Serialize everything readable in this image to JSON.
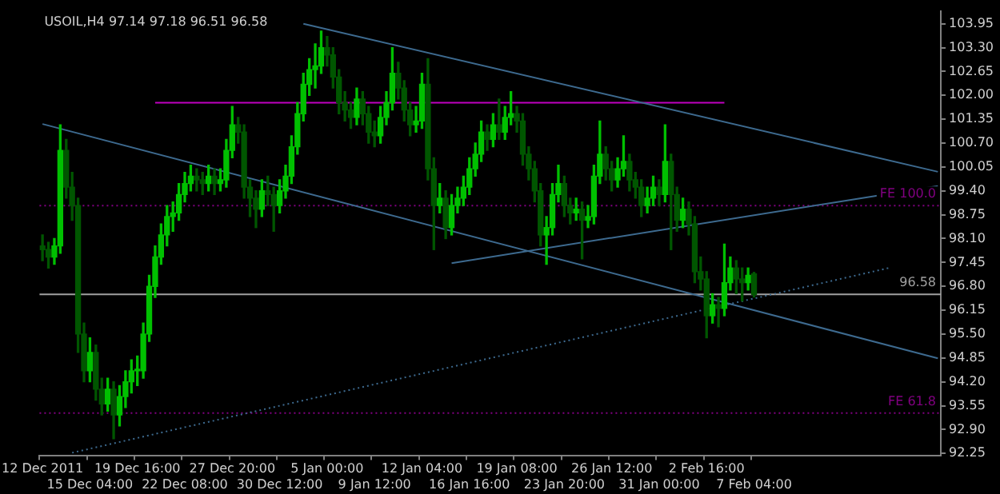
{
  "chart_data": {
    "type": "candlestick",
    "title": "USOIL,H4 97.14 97.18 96.51 96.58",
    "colors": [
      "#005600",
      "#005600",
      "#00c000",
      "#00c000",
      "#005600",
      "#005600",
      "#005600",
      "#005600",
      "#00c000",
      "#005600",
      "#005600",
      "#00c000",
      "#005600",
      "#00c000",
      "#00c000",
      "#00c000",
      "#00c000",
      "#00c000",
      "#00c000",
      "#00c000",
      "#00c000",
      "#00c000",
      "#00c000",
      "#00c000",
      "#00c000",
      "#00c000",
      "#005600",
      "#005600",
      "#00c000",
      "#005600",
      "#00c000",
      "#00c000",
      "#00c000",
      "#005600",
      "#005600",
      "#005600",
      "#005600",
      "#00c000",
      "#005600",
      "#005600",
      "#00c000",
      "#00c000",
      "#00c000",
      "#00c000",
      "#00c000",
      "#00c000",
      "#00c000",
      "#00c000",
      "#005600",
      "#005600",
      "#005600",
      "#005600",
      "#005600",
      "#00c000",
      "#005600",
      "#005600",
      "#005600",
      "#00c000",
      "#00c000",
      "#00c000",
      "#005600",
      "#005600",
      "#005600",
      "#00c000",
      "#00c000",
      "#005600",
      "#005600",
      "#00c000",
      "#005600",
      "#00c000",
      "#00c000",
      "#00c000",
      "#00c000",
      "#00c000",
      "#00c000",
      "#005600",
      "#00c000",
      "#005600",
      "#00c000",
      "#00c000",
      "#005600",
      "#005600",
      "#005600",
      "#005600",
      "#005600",
      "#00c000",
      "#00c000",
      "#00c000",
      "#005600",
      "#005600",
      "#00c000",
      "#005600",
      "#00c000",
      "#00c000",
      "#00c000",
      "#005600",
      "#005600",
      "#00c000",
      "#00c000",
      "#005600",
      "#005600",
      "#005600",
      "#00c000",
      "#00c000",
      "#005600",
      "#00c000",
      "#005600",
      "#005600",
      "#00c000",
      "#005600",
      "#005600",
      "#005600",
      "#005600",
      "#00c000",
      "#005600",
      "#00c000",
      "#00c000",
      "#005600",
      "#005600",
      "#00c000",
      "#005600",
      null,
      null,
      null,
      null,
      null,
      null,
      null,
      null,
      null,
      null,
      null,
      null,
      null,
      null,
      null,
      null,
      null,
      null,
      null,
      null,
      null,
      null,
      null,
      null,
      null,
      null,
      null,
      null,
      null,
      null,
      null
    ],
    "marker": "none",
    "grid": false,
    "legend": false,
    "categories": [
      "12 Dec 2011",
      null,
      null,
      null,
      null,
      null,
      null,
      null,
      "15 Dec 04:00",
      null,
      null,
      null,
      null,
      null,
      null,
      null,
      "19 Dec 16:00",
      null,
      null,
      null,
      null,
      null,
      null,
      null,
      "22 Dec 08:00",
      null,
      null,
      null,
      null,
      null,
      null,
      null,
      "27 Dec 20:00",
      null,
      null,
      null,
      null,
      null,
      null,
      null,
      "30 Dec 12:00",
      null,
      null,
      null,
      null,
      null,
      null,
      null,
      "5 Jan 00:00",
      null,
      null,
      null,
      null,
      null,
      null,
      null,
      "9 Jan 12:00",
      null,
      null,
      null,
      null,
      null,
      null,
      null,
      "12 Jan 04:00",
      null,
      null,
      null,
      null,
      null,
      null,
      null,
      "16 Jan 16:00",
      null,
      null,
      null,
      null,
      null,
      null,
      null,
      "19 Jan 08:00",
      null,
      null,
      null,
      null,
      null,
      null,
      null,
      "23 Jan 20:00",
      null,
      null,
      null,
      null,
      null,
      null,
      null,
      "26 Jan 12:00",
      null,
      null,
      null,
      null,
      null,
      null,
      null,
      "31 Jan 00:00",
      null,
      null,
      null,
      null,
      null,
      null,
      null,
      "2 Feb 16:00",
      null,
      null,
      null,
      null,
      null,
      null,
      null,
      "7 Feb 04:00",
      null,
      null,
      null,
      null,
      null,
      null,
      null,
      null,
      null,
      null,
      null,
      null,
      null,
      null,
      null,
      null,
      null,
      null,
      null,
      null,
      null,
      null,
      null,
      null,
      null,
      null,
      null,
      null,
      null,
      null,
      null
    ],
    "ohlc": [
      [
        97.9,
        98.2,
        97.5,
        97.8
      ],
      [
        97.8,
        98.0,
        97.3,
        97.6
      ],
      [
        97.6,
        98.1,
        97.4,
        97.9
      ],
      [
        97.9,
        101.2,
        97.7,
        100.5
      ],
      [
        100.5,
        100.8,
        99.2,
        99.5
      ],
      [
        99.5,
        99.9,
        98.6,
        99.0
      ],
      [
        99.0,
        99.2,
        95.0,
        95.5
      ],
      [
        95.5,
        95.8,
        94.2,
        94.5
      ],
      [
        94.5,
        95.4,
        94.2,
        95.0
      ],
      [
        95.0,
        95.2,
        93.7,
        94.0
      ],
      [
        94.0,
        94.3,
        93.3,
        93.6
      ],
      [
        93.6,
        94.3,
        93.4,
        94.0
      ],
      [
        94.0,
        94.2,
        92.65,
        93.3
      ],
      [
        93.3,
        94.1,
        93.0,
        93.8
      ],
      [
        93.8,
        94.5,
        93.5,
        94.2
      ],
      [
        94.2,
        94.8,
        93.9,
        94.5
      ],
      [
        94.5,
        94.9,
        94.1,
        94.5
      ],
      [
        94.5,
        95.8,
        94.3,
        95.5
      ],
      [
        95.5,
        97.1,
        95.3,
        96.8
      ],
      [
        96.8,
        97.9,
        96.5,
        97.6
      ],
      [
        97.6,
        98.5,
        97.4,
        98.2
      ],
      [
        98.2,
        99.0,
        97.9,
        98.7
      ],
      [
        98.7,
        99.1,
        98.3,
        98.8
      ],
      [
        98.8,
        99.6,
        98.6,
        99.3
      ],
      [
        99.3,
        99.9,
        99.1,
        99.6
      ],
      [
        99.6,
        100.1,
        99.4,
        99.8
      ],
      [
        99.8,
        100.0,
        99.4,
        99.7
      ],
      [
        99.7,
        99.9,
        99.3,
        99.6
      ],
      [
        99.6,
        100.1,
        99.4,
        99.8
      ],
      [
        99.8,
        100.0,
        99.3,
        99.6
      ],
      [
        99.6,
        100.0,
        99.4,
        99.7
      ],
      [
        99.7,
        100.8,
        99.5,
        100.5
      ],
      [
        100.5,
        101.7,
        100.3,
        101.2
      ],
      [
        101.2,
        101.4,
        100.7,
        101.0
      ],
      [
        101.0,
        101.2,
        99.2,
        99.5
      ],
      [
        99.5,
        99.7,
        98.7,
        99.2
      ],
      [
        99.2,
        99.4,
        98.4,
        98.9
      ],
      [
        98.9,
        99.7,
        98.7,
        99.4
      ],
      [
        99.4,
        99.8,
        99.0,
        99.3
      ],
      [
        99.3,
        99.5,
        98.3,
        99.0
      ],
      [
        99.0,
        99.7,
        98.8,
        99.4
      ],
      [
        99.4,
        100.1,
        99.2,
        99.8
      ],
      [
        99.8,
        100.9,
        99.6,
        100.6
      ],
      [
        100.6,
        101.8,
        100.4,
        101.5
      ],
      [
        101.5,
        102.6,
        101.3,
        102.3
      ],
      [
        102.3,
        103.0,
        102.0,
        102.7
      ],
      [
        102.7,
        103.4,
        102.2,
        102.8
      ],
      [
        102.8,
        103.75,
        102.6,
        103.3
      ],
      [
        103.3,
        103.6,
        102.8,
        103.1
      ],
      [
        103.1,
        103.3,
        102.2,
        102.5
      ],
      [
        102.5,
        102.7,
        101.5,
        101.8
      ],
      [
        101.8,
        102.1,
        101.3,
        101.6
      ],
      [
        101.6,
        101.8,
        101.1,
        101.4
      ],
      [
        101.4,
        102.2,
        101.2,
        101.9
      ],
      [
        101.9,
        102.1,
        101.2,
        101.5
      ],
      [
        101.5,
        101.7,
        100.7,
        101.0
      ],
      [
        101.0,
        101.3,
        100.6,
        100.9
      ],
      [
        100.9,
        101.7,
        100.7,
        101.4
      ],
      [
        101.4,
        102.1,
        101.2,
        101.8
      ],
      [
        101.8,
        103.3,
        101.6,
        102.6
      ],
      [
        102.6,
        102.9,
        101.9,
        102.2
      ],
      [
        102.2,
        102.4,
        101.3,
        101.6
      ],
      [
        101.6,
        101.8,
        100.9,
        101.2
      ],
      [
        101.2,
        101.7,
        101.0,
        101.3
      ],
      [
        101.3,
        102.6,
        101.1,
        102.3
      ],
      [
        102.3,
        103.0,
        99.7,
        100.0
      ],
      [
        100.0,
        100.3,
        97.8,
        99.0
      ],
      [
        99.0,
        99.6,
        98.8,
        99.2
      ],
      [
        99.2,
        99.4,
        98.1,
        98.4
      ],
      [
        98.4,
        99.3,
        98.2,
        99.0
      ],
      [
        99.0,
        99.5,
        98.8,
        99.2
      ],
      [
        99.2,
        99.8,
        99.0,
        99.5
      ],
      [
        99.5,
        100.3,
        99.3,
        100.0
      ],
      [
        100.0,
        100.7,
        99.8,
        100.4
      ],
      [
        100.4,
        101.3,
        100.2,
        101.0
      ],
      [
        101.0,
        101.2,
        100.5,
        100.8
      ],
      [
        100.8,
        101.5,
        100.6,
        101.2
      ],
      [
        101.2,
        101.9,
        100.8,
        101.0
      ],
      [
        101.0,
        101.7,
        100.8,
        101.4
      ],
      [
        101.4,
        102.1,
        101.2,
        101.5
      ],
      [
        101.5,
        101.7,
        101.0,
        101.3
      ],
      [
        101.3,
        101.5,
        100.1,
        100.4
      ],
      [
        100.4,
        100.6,
        99.7,
        100.0
      ],
      [
        100.0,
        100.2,
        99.1,
        99.4
      ],
      [
        99.4,
        99.6,
        97.9,
        98.2
      ],
      [
        98.2,
        98.7,
        97.4,
        98.4
      ],
      [
        98.4,
        99.6,
        98.2,
        99.3
      ],
      [
        99.3,
        100.1,
        99.1,
        99.6
      ],
      [
        99.6,
        99.8,
        98.7,
        99.0
      ],
      [
        99.0,
        99.2,
        98.5,
        98.8
      ],
      [
        98.8,
        99.2,
        98.6,
        98.9
      ],
      [
        98.9,
        99.1,
        97.55,
        98.6
      ],
      [
        98.6,
        99.0,
        98.4,
        98.7
      ],
      [
        98.7,
        100.1,
        98.5,
        99.8
      ],
      [
        99.8,
        101.3,
        99.6,
        100.4
      ],
      [
        100.4,
        100.6,
        99.7,
        100.0
      ],
      [
        100.0,
        100.2,
        99.4,
        99.7
      ],
      [
        99.7,
        100.3,
        99.5,
        100.0
      ],
      [
        100.0,
        100.9,
        99.8,
        100.2
      ],
      [
        100.2,
        100.4,
        99.4,
        99.7
      ],
      [
        99.7,
        99.9,
        99.2,
        99.5
      ],
      [
        99.5,
        99.7,
        98.7,
        99.0
      ],
      [
        99.0,
        99.5,
        98.8,
        99.2
      ],
      [
        99.2,
        99.8,
        99.0,
        99.5
      ],
      [
        99.5,
        99.7,
        99.0,
        99.3
      ],
      [
        99.3,
        101.2,
        99.1,
        100.2
      ],
      [
        100.2,
        100.4,
        97.8,
        99.3
      ],
      [
        99.3,
        99.5,
        98.3,
        98.6
      ],
      [
        98.6,
        99.2,
        98.4,
        98.9
      ],
      [
        98.9,
        99.1,
        98.2,
        98.5
      ],
      [
        98.5,
        98.7,
        96.9,
        97.2
      ],
      [
        97.2,
        97.6,
        96.7,
        97.0
      ],
      [
        97.0,
        97.2,
        95.4,
        96.0
      ],
      [
        96.0,
        96.6,
        95.8,
        96.3
      ],
      [
        96.3,
        96.5,
        95.7,
        96.2
      ],
      [
        96.2,
        97.95,
        96.0,
        96.9
      ],
      [
        96.9,
        97.6,
        96.7,
        97.3
      ],
      [
        97.3,
        97.5,
        96.6,
        97.0
      ],
      [
        97.0,
        97.3,
        96.4,
        96.9
      ],
      [
        96.9,
        97.3,
        96.7,
        97.1
      ],
      [
        97.14,
        97.18,
        96.51,
        96.58
      ],
      null,
      null,
      null,
      null,
      null,
      null,
      null,
      null,
      null,
      null,
      null,
      null,
      null,
      null,
      null,
      null,
      null,
      null,
      null,
      null,
      null,
      null,
      null,
      null,
      null,
      null,
      null,
      null,
      null,
      null,
      null
    ],
    "series": [
      {
        "type": "line",
        "color": "#3d6a8f",
        "line_style": "solid",
        "values": [
          null,
          null,
          null,
          null,
          null,
          null,
          null,
          null,
          null,
          null,
          null,
          null,
          null,
          null,
          null,
          null,
          null,
          null,
          null,
          null,
          null,
          null,
          null,
          null,
          null,
          null,
          null,
          null,
          null,
          null,
          null,
          null,
          null,
          null,
          null,
          null,
          null,
          null,
          null,
          null,
          null,
          null,
          null,
          null,
          103.95,
          null,
          null,
          null,
          null,
          null,
          null,
          null,
          null,
          null,
          null,
          null,
          null,
          null,
          null,
          null,
          null,
          null,
          null,
          null,
          null,
          null,
          null,
          null,
          null,
          null,
          null,
          null,
          null,
          null,
          null,
          null,
          null,
          null,
          null,
          null,
          null,
          null,
          null,
          null,
          null,
          null,
          null,
          null,
          null,
          null,
          null,
          null,
          null,
          null,
          null,
          null,
          null,
          null,
          null,
          null,
          null,
          null,
          null,
          null,
          null,
          null,
          null,
          null,
          null,
          null,
          null,
          null,
          null,
          null,
          null,
          null,
          null,
          null,
          null,
          null,
          null,
          null,
          null,
          null,
          null,
          null,
          null,
          null,
          null,
          null,
          null,
          null,
          null,
          null,
          null,
          null,
          null,
          null,
          null,
          null,
          null,
          null,
          null,
          null,
          null,
          null,
          null,
          null,
          null,
          null,
          null,
          99.92
        ]
      },
      {
        "type": "line",
        "color": "#3d6a8f",
        "line_style": "solid",
        "values": [
          101.22,
          null,
          null,
          null,
          null,
          null,
          null,
          null,
          null,
          null,
          null,
          null,
          null,
          null,
          null,
          null,
          null,
          null,
          null,
          null,
          null,
          null,
          null,
          null,
          null,
          null,
          null,
          null,
          null,
          null,
          null,
          null,
          null,
          null,
          null,
          null,
          null,
          null,
          null,
          null,
          null,
          null,
          null,
          null,
          null,
          null,
          null,
          null,
          null,
          null,
          null,
          null,
          null,
          null,
          null,
          null,
          null,
          null,
          null,
          null,
          null,
          null,
          null,
          null,
          null,
          null,
          null,
          null,
          null,
          null,
          null,
          null,
          null,
          null,
          null,
          null,
          null,
          null,
          null,
          null,
          null,
          null,
          null,
          null,
          null,
          null,
          null,
          null,
          null,
          null,
          null,
          null,
          null,
          null,
          null,
          null,
          null,
          null,
          null,
          null,
          null,
          null,
          null,
          null,
          null,
          null,
          null,
          null,
          null,
          null,
          null,
          null,
          null,
          null,
          null,
          null,
          null,
          null,
          null,
          null,
          null,
          null,
          null,
          null,
          null,
          null,
          null,
          null,
          null,
          null,
          null,
          null,
          null,
          null,
          null,
          null,
          null,
          null,
          null,
          null,
          null,
          null,
          null,
          null,
          null,
          null,
          null,
          null,
          null,
          null,
          null,
          94.84
        ]
      },
      {
        "type": "line",
        "color": "#3d6a8f",
        "line_style": "solid",
        "values": [
          null,
          null,
          null,
          null,
          null,
          null,
          null,
          null,
          null,
          null,
          null,
          null,
          null,
          null,
          null,
          null,
          null,
          null,
          null,
          null,
          null,
          null,
          null,
          null,
          null,
          null,
          null,
          null,
          null,
          null,
          null,
          null,
          null,
          null,
          null,
          null,
          null,
          null,
          null,
          null,
          null,
          null,
          null,
          null,
          null,
          null,
          null,
          null,
          null,
          null,
          null,
          null,
          null,
          null,
          null,
          null,
          null,
          null,
          null,
          null,
          null,
          null,
          null,
          null,
          null,
          null,
          null,
          null,
          null,
          97.43,
          null,
          null,
          null,
          null,
          null,
          null,
          null,
          null,
          null,
          null,
          null,
          null,
          null,
          null,
          null,
          null,
          null,
          null,
          null,
          null,
          null,
          null,
          null,
          null,
          null,
          null,
          null,
          null,
          null,
          null,
          null,
          null,
          null,
          null,
          null,
          null,
          null,
          null,
          null,
          null,
          null,
          null,
          null,
          null,
          null,
          null,
          null,
          null,
          null,
          null,
          null,
          null,
          null,
          null,
          null,
          null,
          null,
          null,
          null,
          null,
          null,
          null,
          null,
          null,
          null,
          null,
          null,
          null,
          null,
          null,
          null,
          null,
          null,
          null,
          null,
          null,
          null,
          null,
          null,
          null,
          null,
          99.53
        ]
      },
      {
        "type": "line",
        "color": "#3d6a8f",
        "line_style": "dotted",
        "values": [
          null,
          null,
          null,
          null,
          null,
          92.27,
          null,
          null,
          null,
          null,
          null,
          null,
          null,
          null,
          null,
          null,
          null,
          null,
          null,
          null,
          null,
          null,
          null,
          null,
          null,
          null,
          null,
          null,
          null,
          null,
          null,
          null,
          null,
          null,
          null,
          null,
          null,
          null,
          null,
          null,
          null,
          null,
          null,
          null,
          null,
          null,
          null,
          null,
          null,
          null,
          null,
          null,
          null,
          null,
          null,
          null,
          null,
          null,
          null,
          null,
          null,
          null,
          null,
          null,
          null,
          null,
          null,
          null,
          null,
          null,
          null,
          null,
          null,
          null,
          null,
          null,
          null,
          null,
          null,
          null,
          null,
          null,
          null,
          null,
          null,
          null,
          null,
          null,
          null,
          null,
          null,
          null,
          null,
          null,
          null,
          null,
          null,
          null,
          null,
          null,
          null,
          null,
          null,
          null,
          null,
          null,
          null,
          null,
          null,
          null,
          null,
          null,
          null,
          null,
          null,
          null,
          null,
          null,
          null,
          null,
          null,
          null,
          null,
          null,
          null,
          null,
          null,
          null,
          null,
          null,
          null,
          null,
          null,
          null,
          null,
          null,
          null,
          null,
          null,
          null,
          null,
          null,
          null,
          97.31,
          null,
          null,
          null,
          null,
          null,
          null,
          null,
          null
        ]
      },
      {
        "type": "line",
        "color": "#c000c0",
        "line_style": "solid",
        "values": [
          null,
          null,
          null,
          null,
          null,
          null,
          null,
          null,
          null,
          null,
          null,
          null,
          null,
          null,
          null,
          null,
          null,
          null,
          null,
          101.8,
          null,
          null,
          null,
          null,
          null,
          null,
          null,
          null,
          null,
          null,
          null,
          null,
          null,
          null,
          null,
          null,
          null,
          null,
          null,
          null,
          null,
          null,
          null,
          null,
          null,
          null,
          null,
          null,
          null,
          null,
          null,
          null,
          null,
          null,
          null,
          null,
          null,
          null,
          null,
          null,
          null,
          null,
          null,
          null,
          null,
          null,
          null,
          null,
          null,
          null,
          null,
          null,
          null,
          null,
          null,
          null,
          null,
          null,
          null,
          null,
          null,
          null,
          null,
          null,
          null,
          null,
          null,
          null,
          null,
          null,
          null,
          null,
          null,
          null,
          null,
          null,
          null,
          null,
          null,
          null,
          null,
          null,
          null,
          null,
          null,
          null,
          null,
          null,
          null,
          null,
          null,
          null,
          null,
          null,
          null,
          101.8,
          null,
          null,
          null,
          null,
          null,
          null,
          null,
          null,
          null,
          null,
          null,
          null,
          null,
          null,
          null,
          null,
          null,
          null,
          null,
          null,
          null,
          null,
          null,
          null,
          null,
          null,
          null,
          null,
          null,
          null,
          null,
          null,
          null,
          null,
          null,
          null
        ]
      }
    ],
    "ylim": [
      92.2,
      104.3
    ],
    "yticks": [
      103.95,
      {
        "value": 103.3,
        "label": "103.30"
      },
      102.65,
      {
        "value": 102,
        "label": "102.00"
      },
      101.35,
      {
        "value": 100.7,
        "label": "100.70"
      },
      100.05,
      {
        "value": 99.4,
        "label": "99.40"
      },
      98.75,
      {
        "value": 98.1,
        "label": "98.10"
      },
      97.45,
      {
        "value": 96.8,
        "label": "96.80"
      },
      96.15,
      {
        "value": 95.5,
        "label": "95.50"
      },
      94.85,
      {
        "value": 94.2,
        "label": "94.20"
      },
      93.55,
      {
        "value": 92.9,
        "label": "92.90"
      },
      92.25
    ],
    "ref_lines": [
      {
        "axis": "y",
        "value": 99.0,
        "label": "FE 100.0",
        "color": "#800080",
        "line_style": "dotted"
      },
      {
        "axis": "y",
        "value": 93.35,
        "label": "FE 61.8",
        "color": "#800080",
        "line_style": "dotted"
      },
      {
        "axis": "y",
        "value": 96.58,
        "label": "96.58",
        "color": "#a0a0a0",
        "line_style": "solid"
      }
    ]
  }
}
